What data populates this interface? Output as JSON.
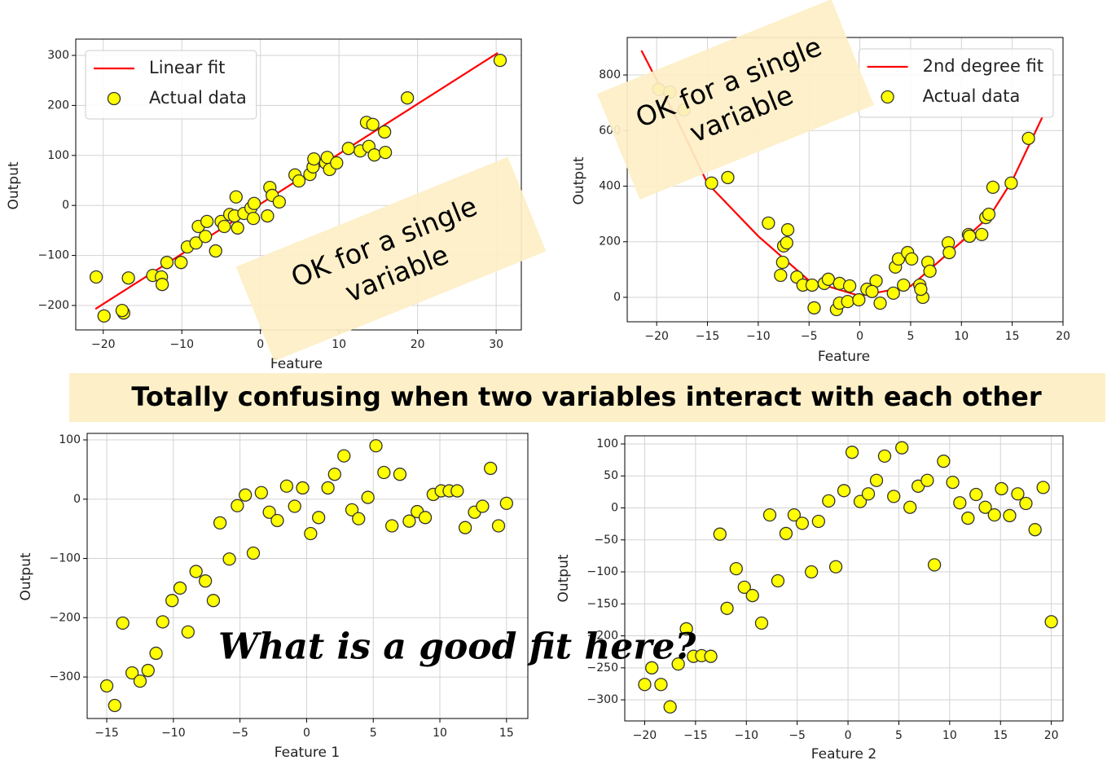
{
  "chart_data": [
    {
      "type": "scatter",
      "xlabel": "Feature",
      "ylabel": "Output",
      "xlim": [
        -23.5,
        33.2
      ],
      "ylim": [
        -248.9,
        332.6
      ],
      "xticks": [
        {
          "value": -20,
          "label": "−20"
        },
        {
          "value": -10,
          "label": "−10"
        },
        0,
        10,
        20,
        30
      ],
      "yticks": [
        {
          "value": -200,
          "label": "−200"
        },
        {
          "value": -100,
          "label": "−100"
        },
        0,
        100,
        200,
        300
      ],
      "grid": true,
      "legend": "upper left",
      "series": [
        {
          "name": "Linear fit",
          "type": "line",
          "color": "#ff0000",
          "x": [
            -21,
            30.2
          ],
          "values": [
            -207,
            305
          ]
        },
        {
          "name": "Actual data",
          "type": "scatter",
          "color": "#ffff00",
          "x": [
            -20.9,
            -19.9,
            -17.4,
            -17.6,
            -16.8,
            -13.7,
            -12.6,
            -12.5,
            -11.9,
            -10.1,
            -9.3,
            -8.2,
            -7.9,
            -7.0,
            -6.8,
            -5.7,
            -5.0,
            -4.6,
            -3.9,
            -3.3,
            -3.1,
            -2.9,
            -2.1,
            -1.2,
            -0.9,
            -0.8,
            0.9,
            1.2,
            1.5,
            2.4,
            4.4,
            4.9,
            6.3,
            6.7,
            6.8,
            8.3,
            8.5,
            8.8,
            9.7,
            11.2,
            12.7,
            13.5,
            13.8,
            14.3,
            14.5,
            15.8,
            15.9,
            18.7,
            30.5
          ],
          "values": [
            -143,
            -221,
            -215,
            -210,
            -145,
            -140,
            -143,
            -158,
            -114,
            -114,
            -83,
            -75,
            -42,
            -62,
            -32,
            -91,
            -32,
            -42,
            -18,
            -21,
            17,
            -45,
            -16,
            -5,
            -26,
            4,
            -21,
            36,
            20,
            7,
            61,
            49,
            62,
            77,
            93,
            85,
            96,
            72,
            85,
            114,
            109,
            166,
            118,
            162,
            101,
            147,
            106,
            215,
            290
          ]
        }
      ]
    },
    {
      "type": "scatter",
      "xlabel": "Feature",
      "ylabel": "Output",
      "xlim": [
        -22.9,
        20
      ],
      "ylim": [
        -88,
        935
      ],
      "xticks": [
        {
          "value": -20,
          "label": "−20"
        },
        {
          "value": -15,
          "label": "−15"
        },
        {
          "value": -10,
          "label": "−10"
        },
        {
          "value": -5,
          "label": "−5"
        },
        0,
        5,
        10,
        15,
        20
      ],
      "yticks": [
        0,
        200,
        400,
        600,
        800
      ],
      "grid": true,
      "legend": "upper right",
      "series": [
        {
          "name": "2nd degree fit",
          "type": "line",
          "color": "#ff0000",
          "x": [
            -21.5,
            -18,
            -15,
            -10,
            -5,
            0,
            5,
            10,
            12.8,
            15,
            18
          ],
          "values": [
            888,
            640,
            410,
            220,
            60,
            5,
            40,
            200,
            293,
            420,
            651
          ]
        },
        {
          "name": "Actual data",
          "type": "scatter",
          "color": "#ffff00",
          "x": [
            -19.8,
            -18.7,
            -17.3,
            -14.6,
            -13.0,
            -9.0,
            -7.6,
            -7.5,
            -7.2,
            -7.1,
            -7.8,
            -6.2,
            -5.6,
            -4.7,
            -4.5,
            -3.5,
            -3.1,
            -2.3,
            -2.0,
            -2.0,
            -1.2,
            -1.0,
            -0.1,
            0.7,
            1.6,
            1.2,
            2.0,
            3.3,
            3.5,
            3.8,
            4.3,
            4.7,
            5.1,
            5.9,
            6.2,
            6.0,
            6.7,
            6.9,
            8.7,
            8.8,
            10.7,
            10.8,
            12.0,
            12.4,
            12.7,
            13.1,
            14.9,
            16.6
          ],
          "values": [
            748,
            739,
            674,
            411,
            431,
            267,
            126,
            185,
            196,
            243,
            79,
            73,
            44,
            44,
            -38,
            50,
            65,
            -44,
            -21,
            50,
            -15,
            41,
            -9,
            29,
            59,
            21,
            -21,
            15,
            109,
            138,
            44,
            161,
            138,
            44,
            0,
            29,
            126,
            94,
            196,
            161,
            226,
            220,
            226,
            287,
            299,
            396,
            411,
            572
          ]
        }
      ]
    },
    {
      "type": "scatter",
      "xlabel": "Feature 1",
      "ylabel": "Output",
      "xlim": [
        -16.47,
        16.6
      ],
      "ylim": [
        -370,
        111
      ],
      "xticks": [
        {
          "value": -15,
          "label": "−15"
        },
        {
          "value": -10,
          "label": "−10"
        },
        {
          "value": -5,
          "label": "−5"
        },
        0,
        5,
        10,
        15
      ],
      "yticks": [
        {
          "value": -300,
          "label": "−300"
        },
        {
          "value": -200,
          "label": "−200"
        },
        {
          "value": -100,
          "label": "−100"
        },
        0,
        100
      ],
      "grid": true,
      "series": [
        {
          "type": "scatter",
          "color": "#ffff00",
          "x": [
            -15.0,
            -14.4,
            -13.8,
            -13.1,
            -12.5,
            -11.9,
            -11.3,
            -10.8,
            -10.1,
            -9.5,
            -8.9,
            -8.3,
            -7.6,
            -7.0,
            -6.5,
            -5.8,
            -5.2,
            -4.6,
            -4.0,
            -3.4,
            -2.8,
            -2.2,
            -1.5,
            -0.9,
            -0.3,
            0.3,
            0.9,
            1.6,
            2.1,
            2.8,
            3.4,
            3.9,
            4.6,
            5.2,
            5.8,
            6.4,
            7.0,
            7.7,
            8.3,
            8.9,
            9.5,
            10.1,
            10.7,
            11.3,
            11.9,
            12.6,
            13.2,
            13.8,
            14.4,
            15.0
          ],
          "values": [
            -315,
            -348,
            -209,
            -293,
            -307,
            -289,
            -260,
            -207,
            -171,
            -150,
            -224,
            -122,
            -138,
            -171,
            -40,
            -101,
            -11,
            7,
            -91,
            11,
            -22,
            -36,
            22,
            -12,
            19,
            -58,
            -31,
            19,
            42,
            73,
            -18,
            -33,
            3,
            90,
            45,
            -45,
            42,
            -37,
            -21,
            -31,
            8,
            14,
            14,
            14,
            -48,
            -22,
            -12,
            52,
            -45,
            -7
          ]
        }
      ]
    },
    {
      "type": "scatter",
      "xlabel": "Feature 2",
      "ylabel": "Output",
      "xlim": [
        -21.96,
        21.15
      ],
      "ylim": [
        -333,
        112.7
      ],
      "xticks": [
        {
          "value": -20,
          "label": "−20"
        },
        {
          "value": -15,
          "label": "−15"
        },
        {
          "value": -10,
          "label": "−10"
        },
        {
          "value": -5,
          "label": "−5"
        },
        0,
        5,
        10,
        15,
        20
      ],
      "yticks": [
        {
          "value": -300,
          "label": "−300"
        },
        {
          "value": -250,
          "label": "−250"
        },
        {
          "value": -200,
          "label": "−200"
        },
        {
          "value": -150,
          "label": "−150"
        },
        {
          "value": -100,
          "label": "−100"
        },
        {
          "value": -50,
          "label": "−50"
        },
        0,
        50,
        100
      ],
      "grid": true,
      "series": [
        {
          "type": "scatter",
          "color": "#ffff00",
          "x": [
            -20.0,
            -19.3,
            -18.4,
            -17.5,
            -16.7,
            -15.9,
            -15.2,
            -14.4,
            -13.5,
            -12.6,
            -11.9,
            -11.0,
            -10.2,
            -9.4,
            -8.5,
            -7.7,
            -6.9,
            -6.1,
            -5.3,
            -4.5,
            -3.6,
            -2.9,
            -1.9,
            -1.2,
            -0.4,
            0.4,
            1.2,
            2.0,
            2.8,
            3.6,
            4.5,
            5.3,
            6.1,
            6.9,
            7.8,
            8.5,
            9.4,
            10.3,
            11.0,
            11.8,
            12.6,
            13.5,
            14.4,
            15.1,
            15.9,
            16.7,
            17.5,
            18.4,
            19.2,
            20.0
          ],
          "values": [
            -276,
            -250,
            -276,
            -311,
            -244,
            -189,
            -232,
            -231,
            -232,
            -41,
            -157,
            -95,
            -124,
            -137,
            -180,
            -11,
            -114,
            -40,
            -11,
            -24,
            -100,
            -21,
            11,
            -92,
            27,
            87,
            10,
            22,
            43,
            81,
            18,
            94,
            1,
            34,
            43,
            -89,
            73,
            40,
            8,
            -16,
            21,
            1,
            -11,
            30,
            -12,
            22,
            7,
            -34,
            32,
            -178
          ]
        }
      ]
    }
  ],
  "annotations": [
    {
      "lines": [
        "OK for a single",
        "variable"
      ]
    },
    {
      "lines": [
        "OK for a single",
        "variable"
      ]
    }
  ],
  "banner": "Totally confusing when two variables interact with each other",
  "question": "What is a good fit here?"
}
